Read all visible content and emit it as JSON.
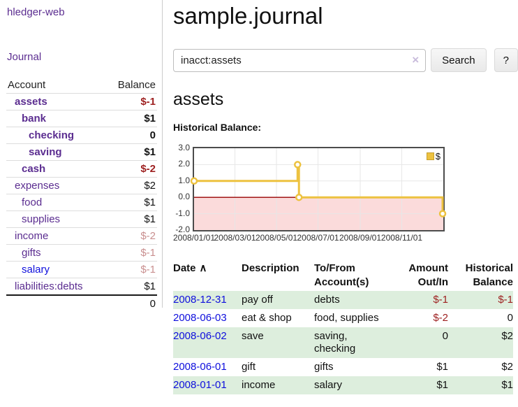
{
  "colors": {
    "link_purple": "#5b2d90",
    "link_blue": "#0f0fdd",
    "negative_dark_red": "#9e2121",
    "negative_muted_red": "#c98f8f",
    "row_highlight_green": "#ddeedd",
    "series_gold": "#edc240"
  },
  "sidebar": {
    "brand": "hledger-web",
    "nav_journal": "Journal",
    "accounts_table": {
      "headers": {
        "account": "Account",
        "balance": "Balance"
      },
      "rows": [
        {
          "account": "assets",
          "indent": 1,
          "bold": true,
          "link_color": "purple",
          "balance": "$-1",
          "balance_style": "neg"
        },
        {
          "account": "bank",
          "indent": 2,
          "bold": true,
          "link_color": "purple",
          "balance": "$1",
          "balance_style": "normal"
        },
        {
          "account": "checking",
          "indent": 3,
          "bold": true,
          "link_color": "purple",
          "balance": "0",
          "balance_style": "normal"
        },
        {
          "account": "saving",
          "indent": 3,
          "bold": true,
          "link_color": "purple",
          "balance": "$1",
          "balance_style": "normal"
        },
        {
          "account": "cash",
          "indent": 2,
          "bold": true,
          "link_color": "purple",
          "balance": "$-2",
          "balance_style": "neg"
        },
        {
          "account": "expenses",
          "indent": 1,
          "bold": false,
          "link_color": "purple",
          "balance": "$2",
          "balance_style": "normal"
        },
        {
          "account": "food",
          "indent": 2,
          "bold": false,
          "link_color": "purple",
          "balance": "$1",
          "balance_style": "normal"
        },
        {
          "account": "supplies",
          "indent": 2,
          "bold": false,
          "link_color": "purple",
          "balance": "$1",
          "balance_style": "normal"
        },
        {
          "account": "income",
          "indent": 1,
          "bold": false,
          "link_color": "purple",
          "balance": "$-2",
          "balance_style": "negmuted"
        },
        {
          "account": "gifts",
          "indent": 2,
          "bold": false,
          "link_color": "purple",
          "balance": "$-1",
          "balance_style": "negmuted"
        },
        {
          "account": "salary",
          "indent": 2,
          "bold": false,
          "link_color": "blue",
          "balance": "$-1",
          "balance_style": "negmuted"
        },
        {
          "account": "liabilities:debts",
          "indent": 1,
          "bold": false,
          "link_color": "purple",
          "balance": "$1",
          "balance_style": "normal"
        }
      ],
      "total": "0"
    }
  },
  "header": {
    "title": "sample.journal"
  },
  "search": {
    "query": "inacct:assets",
    "clear_icon": "×",
    "search_label": "Search",
    "help_label": "?"
  },
  "account_page": {
    "heading": "assets",
    "chart_label": "Historical Balance:"
  },
  "chart_data": {
    "type": "line",
    "title": "Historical Balance:",
    "step": true,
    "x_range": [
      "2008-01-01",
      "2009-01-01"
    ],
    "ylim": [
      -2,
      3
    ],
    "y_ticks": [
      3,
      2,
      1,
      0,
      -1,
      -2
    ],
    "x_ticks": [
      {
        "label": "2008/01/01",
        "date": "2008-01-01"
      },
      {
        "label": "2008/03/01",
        "date": "2008-03-01"
      },
      {
        "label": "2008/05/01",
        "date": "2008-05-01"
      },
      {
        "label": "2008/07/01",
        "date": "2008-07-01"
      },
      {
        "label": "2008/09/01",
        "date": "2008-09-01"
      },
      {
        "label": "2008/11/01",
        "date": "2008-11-01"
      }
    ],
    "grid": true,
    "legend_position": "top-right",
    "legend": [
      {
        "label": "$",
        "color": "#edc240"
      }
    ],
    "series": [
      {
        "name": "$",
        "color": "#edc240",
        "marker": "circle",
        "points": [
          {
            "date": "2008-01-01",
            "value": 1
          },
          {
            "date": "2008-06-01",
            "value": 2
          },
          {
            "date": "2008-06-03",
            "value": 0
          },
          {
            "date": "2008-12-31",
            "value": -1
          }
        ]
      }
    ],
    "negative_region_color": "#fbdbdb",
    "zero_line_color": "#990000",
    "grid_color": "#e7e7e7"
  },
  "transactions": {
    "sort_icon": "∧",
    "columns": [
      {
        "lines": [
          "Date"
        ],
        "align": "left"
      },
      {
        "lines": [
          "Description"
        ],
        "align": "left"
      },
      {
        "lines": [
          "To/From",
          "Account(s)"
        ],
        "align": "left"
      },
      {
        "lines": [
          "Amount",
          "Out/In"
        ],
        "align": "right"
      },
      {
        "lines": [
          "Historical",
          "Balance"
        ],
        "align": "right"
      }
    ],
    "rows": [
      {
        "date": "2008-12-31",
        "description": "pay off",
        "accounts": "debts",
        "amount": "$-1",
        "amount_negative": true,
        "balance": "$-1",
        "balance_negative": true
      },
      {
        "date": "2008-06-03",
        "description": "eat & shop",
        "accounts": "food, supplies",
        "amount": "$-2",
        "amount_negative": true,
        "balance": "0",
        "balance_negative": false
      },
      {
        "date": "2008-06-02",
        "description": "save",
        "accounts": "saving, checking",
        "amount": "0",
        "amount_negative": false,
        "balance": "$2",
        "balance_negative": false
      },
      {
        "date": "2008-06-01",
        "description": "gift",
        "accounts": "gifts",
        "amount": "$1",
        "amount_negative": false,
        "balance": "$2",
        "balance_negative": false
      },
      {
        "date": "2008-01-01",
        "description": "income",
        "accounts": "salary",
        "amount": "$1",
        "amount_negative": false,
        "balance": "$1",
        "balance_negative": false
      }
    ]
  }
}
